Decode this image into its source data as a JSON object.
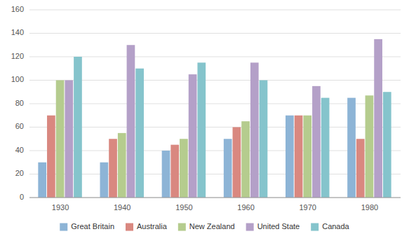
{
  "chart_data": {
    "type": "bar",
    "categories": [
      "1930",
      "1940",
      "1950",
      "1960",
      "1970",
      "1980"
    ],
    "series": [
      {
        "name": "Great Britain",
        "color": "#8db4d6",
        "values": [
          30,
          30,
          40,
          50,
          70,
          85
        ]
      },
      {
        "name": "Australia",
        "color": "#d98880",
        "values": [
          70,
          50,
          45,
          60,
          70,
          50
        ]
      },
      {
        "name": "New Zealand",
        "color": "#b5cc8e",
        "values": [
          100,
          55,
          50,
          65,
          70,
          87
        ]
      },
      {
        "name": "United State",
        "color": "#b4a0c8",
        "values": [
          100,
          130,
          105,
          115,
          95,
          135
        ]
      },
      {
        "name": "Canada",
        "color": "#85c4cc",
        "values": [
          120,
          110,
          115,
          100,
          85,
          90
        ]
      }
    ],
    "ylim": [
      0,
      160
    ],
    "yticks": [
      0,
      20,
      40,
      60,
      80,
      100,
      120,
      140,
      160
    ],
    "grid": true,
    "legend": "bottom"
  }
}
